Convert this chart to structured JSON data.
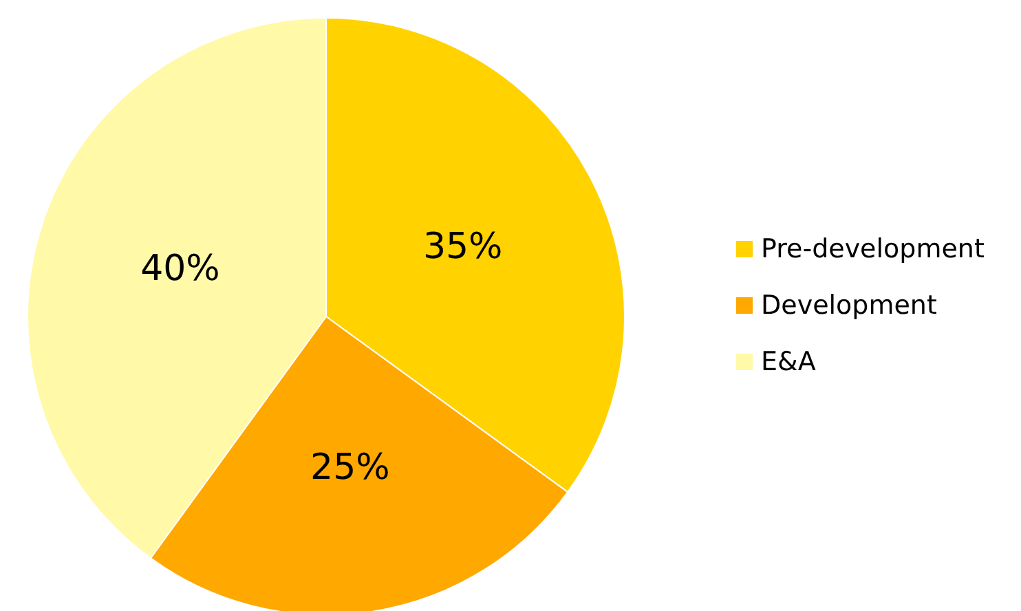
{
  "chart_data": {
    "type": "pie",
    "categories": [
      "Pre-development",
      "Development",
      "E&A"
    ],
    "values": [
      35,
      25,
      40
    ],
    "colors": [
      "#ffd200",
      "#ffa800",
      "#fff9a8"
    ],
    "value_labels": [
      "35%",
      "25%",
      "40%"
    ],
    "legend": "right"
  }
}
